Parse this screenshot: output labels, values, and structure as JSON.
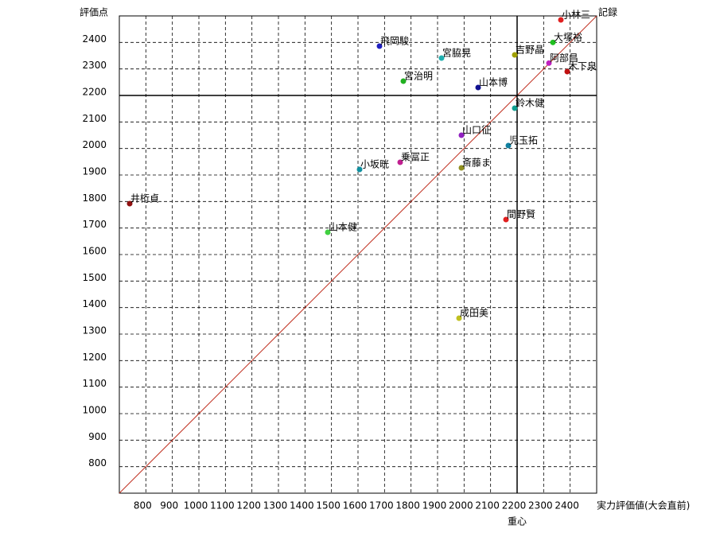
{
  "chart_data": {
    "type": "scatter",
    "y_label": "評価点",
    "x_label": "実力評価値(大会直前)",
    "diagonal_label": "記録",
    "center": {
      "x": 2200,
      "y": 2200,
      "label": "重心"
    },
    "xlim": [
      700,
      2500
    ],
    "ylim": [
      700,
      2500
    ],
    "xticks": [
      800,
      900,
      1000,
      1100,
      1200,
      1300,
      1400,
      1500,
      1600,
      1700,
      1800,
      1900,
      2000,
      2100,
      2200,
      2300,
      2400
    ],
    "yticks": [
      800,
      900,
      1000,
      1100,
      1200,
      1300,
      1400,
      1500,
      1600,
      1700,
      1800,
      1900,
      2000,
      2100,
      2200,
      2300,
      2400
    ],
    "grid": true,
    "points": [
      {
        "name": "小林三",
        "color": "#e02020",
        "x": 2365,
        "y": 2485
      },
      {
        "name": "大塚裕",
        "color": "#20c020",
        "x": 2335,
        "y": 2400
      },
      {
        "name": "阿部昌",
        "color": "#c020c0",
        "x": 2320,
        "y": 2322
      },
      {
        "name": "木下泉",
        "color": "#c01010",
        "x": 2389,
        "y": 2290
      },
      {
        "name": "吉野晶",
        "color": "#a0a000",
        "x": 2191,
        "y": 2353
      },
      {
        "name": "飛岡駿",
        "color": "#2020c0",
        "x": 1681,
        "y": 2386
      },
      {
        "name": "宮脇晃",
        "color": "#20b0b0",
        "x": 1915,
        "y": 2341
      },
      {
        "name": "宮治明",
        "color": "#20b020",
        "x": 1771,
        "y": 2254
      },
      {
        "name": "山本博",
        "color": "#101090",
        "x": 2053,
        "y": 2230
      },
      {
        "name": "鈴木健",
        "color": "#10a090",
        "x": 2191,
        "y": 2152
      },
      {
        "name": "山口征",
        "color": "#9020c0",
        "x": 1990,
        "y": 2050
      },
      {
        "name": "児玉拓",
        "color": "#1080a0",
        "x": 2167,
        "y": 2011
      },
      {
        "name": "乗冨正",
        "color": "#c02090",
        "x": 1759,
        "y": 1948
      },
      {
        "name": "小坂晄",
        "color": "#1090a0",
        "x": 1606,
        "y": 1921
      },
      {
        "name": "斎藤ま",
        "color": "#909020",
        "x": 1990,
        "y": 1927
      },
      {
        "name": "井桁貞",
        "color": "#901010",
        "x": 739,
        "y": 1792
      },
      {
        "name": "間野賢",
        "color": "#e02020",
        "x": 2158,
        "y": 1732
      },
      {
        "name": "山本健",
        "color": "#40d040",
        "x": 1486,
        "y": 1684
      },
      {
        "name": "成田美",
        "color": "#c0c020",
        "x": 1981,
        "y": 1360
      }
    ]
  }
}
